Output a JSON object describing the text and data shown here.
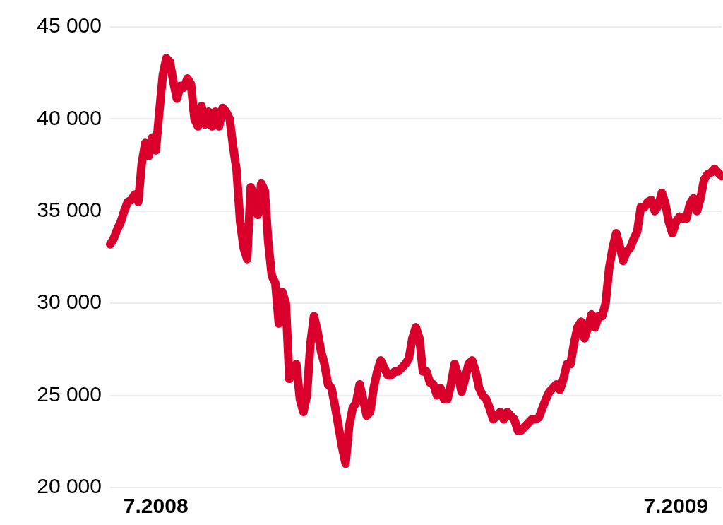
{
  "chart_data": {
    "type": "line",
    "categories": [
      null,
      null,
      null,
      null,
      null,
      null,
      null,
      null,
      null,
      null,
      null,
      null,
      null,
      "7.2008",
      null,
      null,
      null,
      null,
      null,
      null,
      null,
      null,
      null,
      null,
      null,
      null,
      null,
      null,
      null,
      null,
      null,
      null,
      null,
      null,
      null,
      null,
      null,
      null,
      null,
      null,
      null,
      null,
      null,
      null,
      null,
      null,
      null,
      null,
      null,
      null,
      null,
      null,
      null,
      null,
      null,
      null,
      null,
      null,
      null,
      null,
      null,
      null,
      null,
      null,
      null,
      null,
      null,
      null,
      null,
      null,
      null,
      null,
      null,
      null,
      null,
      null,
      null,
      null,
      null,
      null,
      null,
      null,
      null,
      null,
      null,
      null,
      null,
      null,
      null,
      null,
      null,
      null,
      null,
      null,
      null,
      null,
      null,
      null,
      null,
      null,
      null,
      null,
      null,
      null,
      null,
      null,
      null,
      null,
      null,
      null,
      null,
      null,
      null,
      null,
      null,
      null,
      null,
      null,
      null,
      null,
      null,
      null,
      null,
      null,
      null,
      null,
      null,
      null,
      null,
      null,
      null,
      null,
      null,
      null,
      null,
      null,
      null,
      null,
      null,
      null,
      null,
      null,
      null,
      null,
      null,
      null,
      null,
      null,
      null,
      null,
      null,
      null,
      null,
      null,
      null,
      null,
      null,
      null,
      null,
      null,
      null,
      "7.2009",
      null,
      null,
      null,
      null,
      null,
      null,
      null,
      null,
      null,
      null,
      null,
      null,
      null
    ],
    "series": [
      {
        "color": "#d9002b",
        "values": [
          33200,
          33500,
          34000,
          34400,
          35000,
          35500,
          35600,
          35900,
          35500,
          37600,
          38700,
          38000,
          39000,
          38300,
          40400,
          42400,
          43300,
          43100,
          42000,
          41100,
          41800,
          41700,
          42200,
          41900,
          40000,
          39600,
          40700,
          39700,
          40400,
          39600,
          40400,
          39600,
          40600,
          40400,
          40000,
          38500,
          37200,
          34400,
          33000,
          32400,
          36300,
          35900,
          34800,
          36500,
          36100,
          33300,
          31500,
          31100,
          28900,
          30600,
          30000,
          25900,
          26300,
          26700,
          24800,
          24100,
          25000,
          27800,
          29300,
          28500,
          27400,
          26700,
          25600,
          25400,
          24400,
          23300,
          22200,
          21300,
          23300,
          24300,
          24600,
          25600,
          24800,
          23900,
          24100,
          25400,
          26300,
          26900,
          26500,
          26100,
          26100,
          26300,
          26300,
          26500,
          26700,
          27000,
          28100,
          28700,
          28100,
          26300,
          26300,
          25700,
          25600,
          25000,
          25400,
          24800,
          24800,
          25600,
          26700,
          26100,
          25200,
          25900,
          26700,
          26900,
          26300,
          25400,
          25000,
          24800,
          24300,
          23700,
          23900,
          24100,
          23700,
          24100,
          23900,
          23700,
          23100,
          23100,
          23300,
          23500,
          23700,
          23700,
          23800,
          24300,
          24800,
          25200,
          25400,
          25600,
          25300,
          25900,
          26700,
          26700,
          27800,
          28700,
          29000,
          28100,
          28700,
          29400,
          28700,
          29300,
          29300,
          30000,
          31900,
          33000,
          33800,
          33100,
          32300,
          32800,
          33000,
          33500,
          33900,
          35200,
          35200,
          35500,
          35600,
          35000,
          35300,
          36000,
          35400,
          34400,
          33800,
          34400,
          34700,
          34600,
          34600,
          35400,
          35700,
          35000,
          35700,
          36700,
          37000,
          37100,
          37300,
          37100,
          36900
        ]
      }
    ],
    "ylim": [
      20000,
      45000
    ],
    "yticks": [
      {
        "value": 20000,
        "label": "20 000"
      },
      {
        "value": 25000,
        "label": "25 000"
      },
      {
        "value": 30000,
        "label": "30 000"
      },
      {
        "value": 35000,
        "label": "35 000"
      },
      {
        "value": 40000,
        "label": "40 000"
      },
      {
        "value": 45000,
        "label": "45 000"
      }
    ],
    "grid": "y"
  }
}
